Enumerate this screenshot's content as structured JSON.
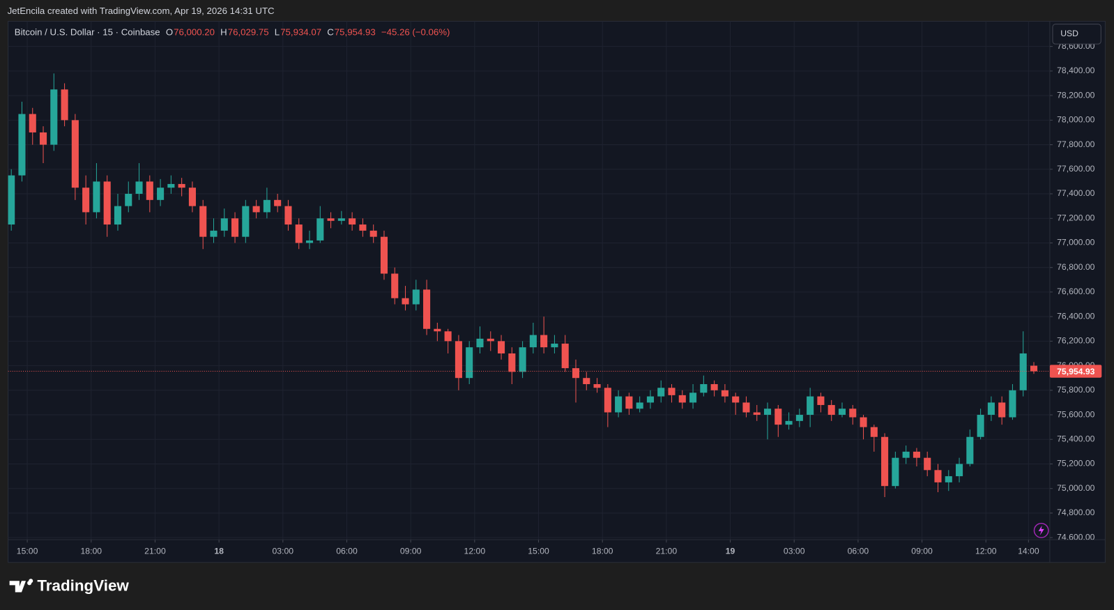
{
  "header": {
    "attribution": "JetEncila created with TradingView.com, Apr 19, 2026 14:31 UTC"
  },
  "chart_data": {
    "type": "candlestick",
    "symbol": "Bitcoin / U.S. Dollar · 15 · Coinbase",
    "ohlc_legend": [
      {
        "label": "O",
        "value": "76,000.20"
      },
      {
        "label": "H",
        "value": "76,029.75"
      },
      {
        "label": "L",
        "value": "75,934.07"
      },
      {
        "label": "C",
        "value": "75,954.93"
      }
    ],
    "change": "−45.26 (−0.06%)",
    "currency": "USD",
    "last_price_label": "75,954.93",
    "last_price": 75954.93,
    "up_color": "#26a69a",
    "down_color": "#ef5350",
    "grid": true,
    "open": [
      77150,
      77550,
      78050,
      77900,
      77800,
      78250,
      78000,
      77450,
      77250,
      77500,
      77150,
      77300,
      77400,
      77500,
      77350,
      77450,
      77480,
      77450,
      77300,
      77050,
      77100,
      77200,
      77050,
      77300,
      77250,
      77350,
      77300,
      77150,
      77000,
      77020,
      77200,
      77180,
      77200,
      77150,
      77100,
      77050,
      76750,
      76550,
      76500,
      76620,
      76300,
      76280,
      76200,
      75900,
      76150,
      76220,
      76200,
      76100,
      75950,
      76150,
      76250,
      76150,
      76180,
      75980,
      75900,
      75850,
      75820,
      75620,
      75750,
      75650,
      75700,
      75750,
      75820,
      75760,
      75700,
      75780,
      75850,
      75800,
      75750,
      75700,
      75620,
      75600,
      75650,
      75520,
      75550,
      75600,
      75750,
      75680,
      75600,
      75650,
      75580,
      75500,
      75420,
      75020,
      75250,
      75300,
      75250,
      75150,
      75050,
      75100,
      75200,
      75420,
      75600,
      75700,
      75580,
      75800,
      76000.2
    ],
    "high": [
      77600,
      78150,
      78100,
      77950,
      78380,
      78300,
      78050,
      77550,
      77650,
      77550,
      77400,
      77500,
      77650,
      77550,
      77520,
      77550,
      77530,
      77500,
      77350,
      77200,
      77280,
      77250,
      77350,
      77350,
      77450,
      77400,
      77350,
      77200,
      77100,
      77300,
      77250,
      77260,
      77250,
      77200,
      77150,
      77100,
      76800,
      76650,
      76700,
      76700,
      76350,
      76300,
      76250,
      76200,
      76320,
      76280,
      76250,
      76150,
      76200,
      76350,
      76400,
      76250,
      76250,
      76050,
      75950,
      75900,
      75850,
      75800,
      75780,
      75750,
      75800,
      75880,
      75850,
      75800,
      75850,
      75920,
      75880,
      75850,
      75780,
      75750,
      75680,
      75700,
      75680,
      75620,
      75650,
      75820,
      75780,
      75720,
      75700,
      75680,
      75600,
      75520,
      75450,
      75300,
      75350,
      75330,
      75300,
      75200,
      75150,
      75250,
      75480,
      75650,
      75750,
      75750,
      75850,
      76280,
      76029.75
    ],
    "low": [
      77100,
      77500,
      77800,
      77650,
      77750,
      77950,
      77350,
      77150,
      77200,
      77050,
      77100,
      77250,
      77350,
      77250,
      77300,
      77400,
      77380,
      77250,
      76950,
      77000,
      77050,
      77000,
      77000,
      77200,
      77200,
      77250,
      77100,
      76950,
      76950,
      77000,
      77120,
      77150,
      77100,
      77050,
      77000,
      76700,
      76500,
      76450,
      76450,
      76250,
      76200,
      76100,
      75800,
      75850,
      76100,
      76120,
      76050,
      75850,
      75900,
      76100,
      76100,
      76100,
      75950,
      75700,
      75800,
      75780,
      75500,
      75580,
      75600,
      75620,
      75650,
      75700,
      75700,
      75650,
      75650,
      75750,
      75750,
      75700,
      75600,
      75580,
      75550,
      75400,
      75420,
      75480,
      75500,
      75500,
      75620,
      75550,
      75580,
      75520,
      75400,
      75300,
      74930,
      75000,
      75200,
      75180,
      75100,
      74970,
      74980,
      75050,
      75180,
      75400,
      75550,
      75520,
      75560,
      75750,
      75934.07
    ],
    "close": [
      77550,
      78050,
      77900,
      77800,
      78250,
      78000,
      77450,
      77250,
      77500,
      77150,
      77300,
      77400,
      77500,
      77350,
      77450,
      77480,
      77450,
      77300,
      77050,
      77100,
      77200,
      77050,
      77300,
      77250,
      77350,
      77300,
      77150,
      77000,
      77020,
      77200,
      77180,
      77200,
      77150,
      77100,
      77050,
      76750,
      76550,
      76500,
      76620,
      76300,
      76280,
      76200,
      75900,
      76150,
      76220,
      76200,
      76100,
      75950,
      76150,
      76250,
      76150,
      76180,
      75980,
      75900,
      75850,
      75820,
      75620,
      75750,
      75650,
      75700,
      75750,
      75820,
      75760,
      75700,
      75780,
      75850,
      75800,
      75750,
      75700,
      75620,
      75600,
      75650,
      75520,
      75550,
      75600,
      75750,
      75680,
      75600,
      75650,
      75580,
      75500,
      75420,
      75020,
      75250,
      75300,
      75250,
      75150,
      75050,
      75100,
      75200,
      75420,
      75600,
      75700,
      75580,
      75800,
      76100,
      75954.93
    ],
    "xlim": [
      -0.3,
      97.5
    ],
    "xticks": [
      {
        "value": 1.5,
        "label": "15:00"
      },
      {
        "value": 7.5,
        "label": "18:00"
      },
      {
        "value": 13.5,
        "label": "21:00"
      },
      {
        "value": 19.5,
        "label": "18"
      },
      {
        "value": 25.5,
        "label": "03:00"
      },
      {
        "value": 31.5,
        "label": "06:00"
      },
      {
        "value": 37.5,
        "label": "09:00"
      },
      {
        "value": 43.5,
        "label": "12:00"
      },
      {
        "value": 49.5,
        "label": "15:00"
      },
      {
        "value": 55.5,
        "label": "18:00"
      },
      {
        "value": 61.5,
        "label": "21:00"
      },
      {
        "value": 67.5,
        "label": "19"
      },
      {
        "value": 73.5,
        "label": "03:00"
      },
      {
        "value": 79.5,
        "label": "06:00"
      },
      {
        "value": 85.5,
        "label": "09:00"
      },
      {
        "value": 91.5,
        "label": "12:00"
      },
      {
        "value": 95.5,
        "label": "14:00"
      }
    ],
    "ylim": [
      74583,
      78805
    ],
    "yticks": [
      {
        "value": 74600,
        "label": "74,600.00"
      },
      {
        "value": 74800,
        "label": "74,800.00"
      },
      {
        "value": 75000,
        "label": "75,000.00"
      },
      {
        "value": 75200,
        "label": "75,200.00"
      },
      {
        "value": 75400,
        "label": "75,400.00"
      },
      {
        "value": 75600,
        "label": "75,600.00"
      },
      {
        "value": 75800,
        "label": "75,800.00"
      },
      {
        "value": 76000,
        "label": "76,000.00"
      },
      {
        "value": 76200,
        "label": "76,200.00"
      },
      {
        "value": 76400,
        "label": "76,400.00"
      },
      {
        "value": 76600,
        "label": "76,600.00"
      },
      {
        "value": 76800,
        "label": "76,800.00"
      },
      {
        "value": 77000,
        "label": "77,000.00"
      },
      {
        "value": 77200,
        "label": "77,200.00"
      },
      {
        "value": 77400,
        "label": "77,400.00"
      },
      {
        "value": 77600,
        "label": "77,600.00"
      },
      {
        "value": 77800,
        "label": "77,800.00"
      },
      {
        "value": 78000,
        "label": "78,000.00"
      },
      {
        "value": 78200,
        "label": "78,200.00"
      },
      {
        "value": 78400,
        "label": "78,400.00"
      },
      {
        "value": 78600,
        "label": "78,600.00"
      }
    ]
  },
  "footer": {
    "brand": "TradingView"
  }
}
